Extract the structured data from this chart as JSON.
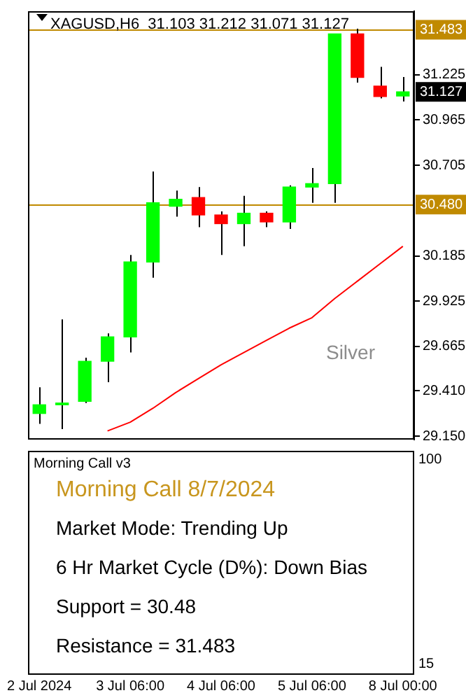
{
  "chart_data": [
    {
      "type": "candlestick",
      "title": "XAGUSD,H6  31.103 31.212 31.071 31.127",
      "categories": [
        "2 Jul 2024",
        null,
        null,
        null,
        "3 Jul 06:00",
        null,
        null,
        null,
        "4 Jul 06:00",
        null,
        null,
        null,
        "5 Jul 06:00",
        null,
        null,
        null,
        "8 Jul 00:00"
      ],
      "ohlc": [
        [
          29.28,
          29.43,
          29.22,
          29.33
        ],
        [
          29.33,
          29.82,
          29.19,
          29.34
        ],
        [
          29.35,
          29.6,
          29.34,
          29.58
        ],
        [
          29.58,
          29.74,
          29.46,
          29.72
        ],
        [
          29.72,
          30.19,
          29.63,
          30.15
        ],
        [
          30.15,
          30.67,
          30.06,
          30.49
        ],
        [
          30.47,
          30.56,
          30.41,
          30.51
        ],
        [
          30.52,
          30.58,
          30.35,
          30.42
        ],
        [
          30.42,
          30.44,
          30.19,
          30.37
        ],
        [
          30.37,
          30.53,
          30.24,
          30.43
        ],
        [
          30.43,
          30.44,
          30.35,
          30.38
        ],
        [
          30.38,
          30.59,
          30.34,
          30.58
        ],
        [
          30.58,
          30.69,
          30.49,
          30.6
        ],
        [
          30.6,
          31.46,
          30.49,
          31.46
        ],
        [
          31.46,
          31.49,
          31.18,
          31.21
        ],
        [
          31.16,
          31.27,
          31.09,
          31.1
        ],
        [
          31.103,
          31.212,
          31.071,
          31.127
        ]
      ],
      "colors": [
        "#00ff00",
        "#00ff00",
        "#00ff00",
        "#00ff00",
        "#00ff00",
        "#00ff00",
        "#00ff00",
        "#ff0000",
        "#ff0000",
        "#00ff00",
        "#ff0000",
        "#00ff00",
        "#00ff00",
        "#00ff00",
        "#ff0000",
        "#ff0000",
        "#00ff00"
      ],
      "series": [
        {
          "type": "line",
          "color": "#ff0000",
          "values": [
            null,
            null,
            null,
            29.18,
            29.23,
            29.31,
            29.4,
            29.48,
            29.56,
            29.63,
            29.7,
            29.77,
            29.83,
            29.94,
            30.04,
            30.14,
            30.24
          ]
        }
      ],
      "ylim": [
        29.13,
        31.59
      ],
      "yticks": [
        {
          "value": 29.15,
          "label": "29.150"
        },
        {
          "value": 29.41,
          "label": "29.410"
        },
        29.665,
        29.925,
        30.185,
        30.705,
        30.965,
        31.225
      ],
      "ref_lines": [
        {
          "axis": "y",
          "value": 31.483,
          "label": "31.483",
          "color": "#c08a00"
        },
        {
          "axis": "y",
          "value": 30.48,
          "label": "30.480",
          "color": "#c08a00"
        }
      ],
      "annotations": [
        "Silver",
        {
          "text": "31.127",
          "y": 31.127
        }
      ],
      "tick_labels": "y",
      "grid": false,
      "legend": false,
      "marker": "none"
    },
    {
      "type": "other",
      "title": "Morning Call v3",
      "subtitle": "Morning Call 8/7/2024",
      "annotations": [
        "Market Mode: Trending Up",
        "6 Hr Market Cycle (D%): Down Bias",
        "Support = 30.48",
        "Resistance = 31.483",
        "100",
        "15"
      ]
    }
  ]
}
